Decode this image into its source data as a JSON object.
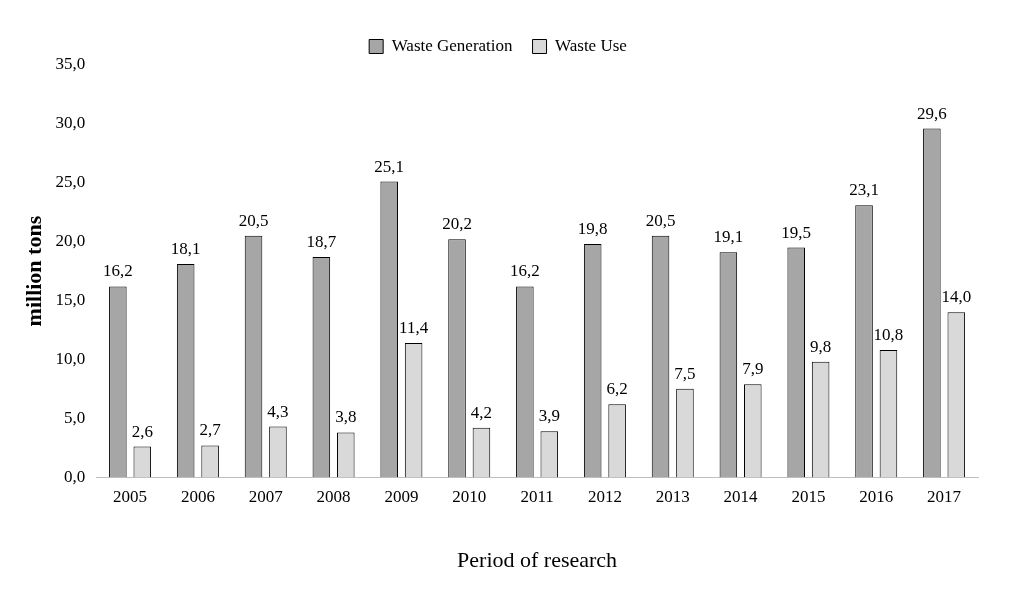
{
  "chart_data": {
    "type": "bar",
    "xlabel": "Period of research",
    "ylabel": "million tons",
    "categories": [
      "2005",
      "2006",
      "2007",
      "2008",
      "2009",
      "2010",
      "2011",
      "2012",
      "2013",
      "2014",
      "2015",
      "2016",
      "2017"
    ],
    "series": [
      {
        "name": "Waste Generation",
        "color": "#a6a6a6",
        "values": [
          16.2,
          18.1,
          20.5,
          18.7,
          25.1,
          20.2,
          16.2,
          19.8,
          20.5,
          19.1,
          19.5,
          23.1,
          29.6
        ],
        "value_labels": [
          "16,2",
          "18,1",
          "20,5",
          "18,7",
          "25,1",
          "20,2",
          "16,2",
          "19,8",
          "20,5",
          "19,1",
          "19,5",
          "23,1",
          "29,6"
        ]
      },
      {
        "name": "Waste Use",
        "color": "#d9d9d9",
        "values": [
          2.6,
          2.7,
          4.3,
          3.8,
          11.4,
          4.2,
          3.9,
          6.2,
          7.5,
          7.9,
          9.8,
          10.8,
          14.0
        ],
        "value_labels": [
          "2,6",
          "2,7",
          "4,3",
          "3,8",
          "11,4",
          "4,2",
          "3,9",
          "6,2",
          "7,5",
          "7,9",
          "9,8",
          "10,8",
          "14,0"
        ]
      }
    ],
    "ylim": [
      0,
      35
    ],
    "yticks": [
      {
        "value": 0,
        "label": "0,0"
      },
      {
        "value": 5,
        "label": "5,0"
      },
      {
        "value": 10,
        "label": "10,0"
      },
      {
        "value": 15,
        "label": "15,0"
      },
      {
        "value": 20,
        "label": "20,0"
      },
      {
        "value": 25,
        "label": "25,0"
      },
      {
        "value": 30,
        "label": "30,0"
      },
      {
        "value": 35,
        "label": "35,0"
      }
    ],
    "legend": "top"
  }
}
